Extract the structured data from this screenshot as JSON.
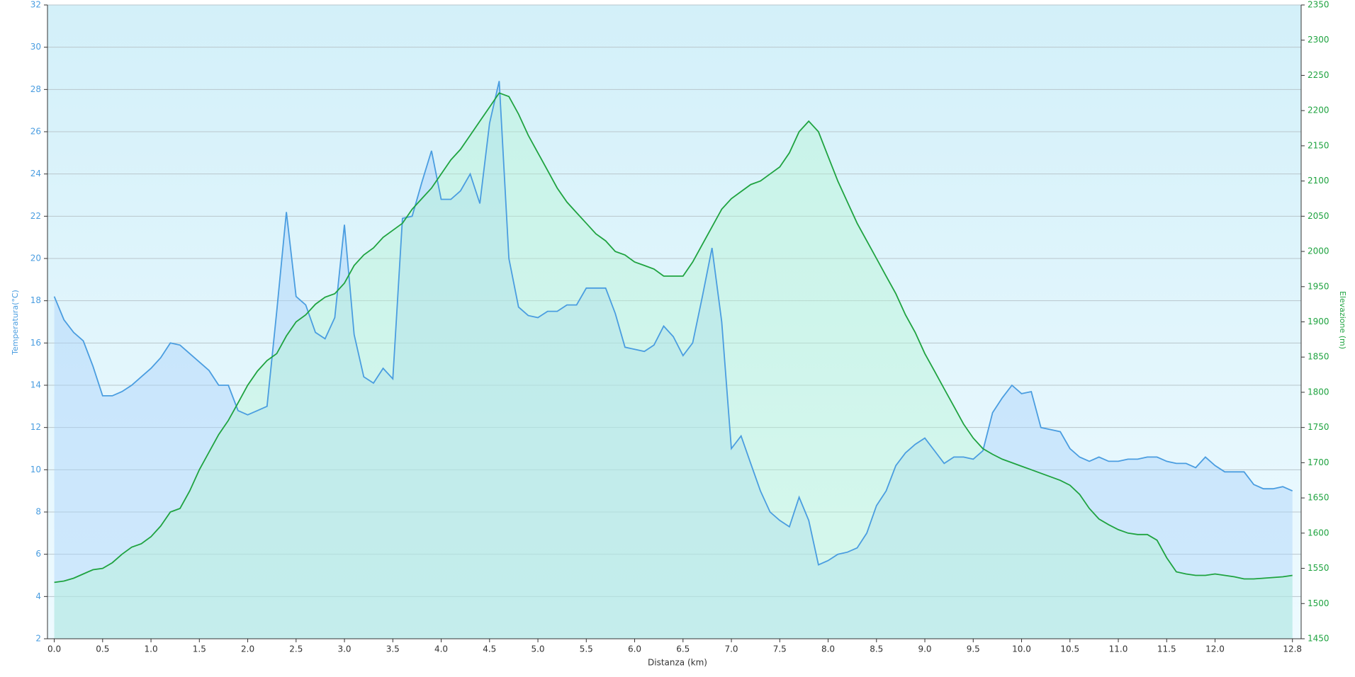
{
  "chart_data": {
    "type": "line",
    "x_label": "Distanza  (km)",
    "y_label": "Temperatura(°C)",
    "y2_label": "Elevazione (m)",
    "grid": true,
    "xlim": [
      -0.07,
      12.89
    ],
    "xticks": [
      {
        "value": 0,
        "label": "0.0"
      },
      0.5,
      {
        "value": 1,
        "label": "1.0"
      },
      1.5,
      {
        "value": 2,
        "label": "2.0"
      },
      2.5,
      {
        "value": 3,
        "label": "3.0"
      },
      3.5,
      {
        "value": 4,
        "label": "4.0"
      },
      4.5,
      {
        "value": 5,
        "label": "5.0"
      },
      5.5,
      {
        "value": 6,
        "label": "6.0"
      },
      6.5,
      {
        "value": 7,
        "label": "7.0"
      },
      7.5,
      {
        "value": 8,
        "label": "8.0"
      },
      8.5,
      {
        "value": 9,
        "label": "9.0"
      },
      9.5,
      {
        "value": 10,
        "label": "10.0"
      },
      10.5,
      {
        "value": 11,
        "label": "11.0"
      },
      11.5,
      {
        "value": 12,
        "label": "12.0"
      },
      12.8
    ],
    "ylim": [
      2,
      32
    ],
    "yticks": [
      2,
      4,
      6,
      8,
      10,
      12,
      14,
      16,
      18,
      20,
      22,
      24,
      26,
      28,
      30,
      32
    ],
    "y2lim": [
      1450,
      2350
    ],
    "y2ticks": [
      1450,
      1500,
      1550,
      1600,
      1650,
      1700,
      1750,
      1800,
      1850,
      1900,
      1950,
      2000,
      2050,
      2100,
      2150,
      2200,
      2250,
      2300,
      2350
    ],
    "x": [
      0,
      0.1,
      0.2,
      0.3,
      0.4,
      0.5,
      0.6,
      0.7,
      0.8,
      0.9,
      1,
      1.1,
      1.2,
      1.3,
      1.4,
      1.5,
      1.6,
      1.7,
      1.8,
      1.9,
      2,
      2.1,
      2.2,
      2.3,
      2.4,
      2.5,
      2.6,
      2.7,
      2.8,
      2.9,
      3,
      3.1,
      3.2,
      3.3,
      3.4,
      3.5,
      3.6,
      3.7,
      3.8,
      3.9,
      4,
      4.1,
      4.2,
      4.3,
      4.4,
      4.5,
      4.6,
      4.7,
      4.8,
      4.9,
      5,
      5.1,
      5.2,
      5.3,
      5.4,
      5.5,
      5.6,
      5.7,
      5.8,
      5.9,
      6,
      6.1,
      6.2,
      6.3,
      6.4,
      6.5,
      6.6,
      6.7,
      6.8,
      6.9,
      7,
      7.1,
      7.2,
      7.3,
      7.4,
      7.5,
      7.6,
      7.7,
      7.8,
      7.9,
      8,
      8.1,
      8.2,
      8.3,
      8.4,
      8.5,
      8.6,
      8.7,
      8.8,
      8.9,
      9,
      9.1,
      9.2,
      9.3,
      9.4,
      9.5,
      9.6,
      9.7,
      9.8,
      9.9,
      10,
      10.1,
      10.2,
      10.3,
      10.4,
      10.5,
      10.6,
      10.7,
      10.8,
      10.9,
      11,
      11.1,
      11.2,
      11.3,
      11.4,
      11.5,
      11.6,
      11.7,
      11.8,
      11.9,
      12,
      12.1,
      12.2,
      12.3,
      12.4,
      12.5,
      12.6,
      12.7,
      12.8
    ],
    "series": [
      {
        "name": "Temperatura",
        "axis": "y",
        "color": "#4a9de0",
        "fill": "rgba(170,210,250,0.45)",
        "values": [
          18.2,
          17.1,
          16.5,
          16.1,
          14.9,
          13.5,
          13.5,
          13.7,
          14.0,
          14.4,
          14.8,
          15.3,
          16.0,
          15.9,
          15.5,
          15.1,
          14.7,
          14.0,
          14.0,
          12.8,
          12.6,
          12.8,
          13.0,
          17.5,
          22.2,
          18.2,
          17.8,
          16.5,
          16.2,
          17.2,
          21.6,
          16.4,
          14.4,
          14.1,
          14.8,
          14.3,
          21.9,
          22.0,
          23.6,
          25.1,
          22.8,
          22.8,
          23.2,
          24.0,
          22.6,
          26.4,
          28.4,
          20.0,
          17.7,
          17.3,
          17.2,
          17.5,
          17.5,
          17.8,
          17.8,
          18.6,
          18.6,
          18.6,
          17.4,
          15.8,
          15.7,
          15.6,
          15.9,
          16.8,
          16.3,
          15.4,
          16.0,
          18.2,
          20.5,
          17.0,
          11.0,
          11.6,
          10.3,
          9.0,
          8.0,
          7.6,
          7.3,
          8.7,
          7.6,
          5.5,
          5.7,
          6.0,
          6.1,
          6.3,
          7.0,
          8.3,
          9.0,
          10.2,
          10.8,
          11.2,
          11.5,
          10.9,
          10.3,
          10.6,
          10.6,
          10.5,
          10.9,
          12.7,
          13.4,
          14.0,
          13.6,
          13.7,
          12.0,
          11.9,
          11.8,
          11.0,
          10.6,
          10.4,
          10.6,
          10.4,
          10.4,
          10.5,
          10.5,
          10.6,
          10.6,
          10.4,
          10.3,
          10.3,
          10.1,
          10.6,
          10.2,
          9.9,
          9.9,
          9.9,
          9.3,
          9.1,
          9.1,
          9.2,
          9.0
        ]
      },
      {
        "name": "Elevazione",
        "axis": "y2",
        "color": "#1fa340",
        "fill": "rgba(180,245,210,0.4)",
        "values": [
          1530,
          1532,
          1536,
          1542,
          1548,
          1550,
          1558,
          1570,
          1580,
          1585,
          1595,
          1610,
          1630,
          1635,
          1660,
          1690,
          1715,
          1740,
          1760,
          1785,
          1810,
          1830,
          1845,
          1855,
          1880,
          1900,
          1910,
          1925,
          1935,
          1940,
          1955,
          1980,
          1995,
          2005,
          2020,
          2030,
          2040,
          2060,
          2075,
          2090,
          2110,
          2130,
          2145,
          2165,
          2185,
          2205,
          2225,
          2220,
          2195,
          2165,
          2140,
          2115,
          2090,
          2070,
          2055,
          2040,
          2025,
          2015,
          2000,
          1995,
          1985,
          1980,
          1975,
          1965,
          1965,
          1965,
          1985,
          2010,
          2035,
          2060,
          2075,
          2085,
          2095,
          2100,
          2110,
          2120,
          2140,
          2170,
          2185,
          2170,
          2135,
          2100,
          2070,
          2040,
          2015,
          1990,
          1965,
          1940,
          1910,
          1885,
          1855,
          1830,
          1805,
          1780,
          1755,
          1735,
          1720,
          1712,
          1705,
          1700,
          1695,
          1690,
          1685,
          1680,
          1675,
          1668,
          1655,
          1635,
          1620,
          1612,
          1605,
          1600,
          1598,
          1598,
          1590,
          1565,
          1545,
          1542,
          1540,
          1540,
          1542,
          1540,
          1538,
          1535,
          1535,
          1536,
          1537,
          1538,
          1540
        ]
      }
    ]
  }
}
